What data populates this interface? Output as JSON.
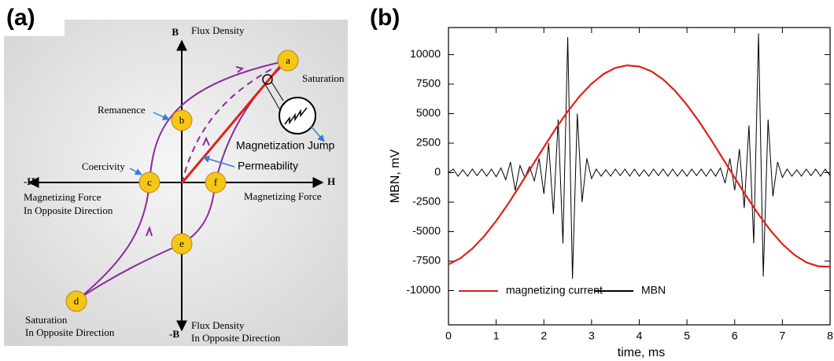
{
  "panel_a": {
    "label": "(a)",
    "b_axis": {
      "top": "B",
      "top_text": "Flux Density",
      "bottom": "-B",
      "bottom_text": [
        "Flux Density",
        "In Opposite Direction"
      ]
    },
    "h_axis": {
      "right": "H",
      "right_text": "Magnetizing Force",
      "left": "-H",
      "left_text": [
        "Magnetizing Force",
        "In Opposite Direction"
      ]
    },
    "points": [
      "a",
      "b",
      "c",
      "d",
      "e",
      "f"
    ],
    "annotations": {
      "saturation": "Saturation",
      "saturation_opposite": [
        "Saturation",
        "In Opposite Direction"
      ],
      "remanence": "Remanence",
      "coercivity": "Coercivity",
      "permeability": "Permeability",
      "magnetization_jump": "Magnetization Jump"
    }
  },
  "chart_data": {
    "type": "line",
    "panel_label": "(b)",
    "x_label": "time, ms",
    "y_label": "MBN, mV",
    "xlim": [
      0,
      8
    ],
    "xticks": [
      0,
      1,
      2,
      3,
      4,
      5,
      6,
      7,
      8
    ],
    "ylim": [
      -12900,
      12300
    ],
    "yticks": [
      -10000,
      -7500,
      -5000,
      -2500,
      0,
      2500,
      5000,
      7500,
      10000
    ],
    "series": [
      {
        "name": "MBN",
        "color": "#000000",
        "x": [
          0,
          0.1,
          0.2,
          0.3,
          0.4,
          0.5,
          0.6,
          0.7,
          0.8,
          0.9,
          1,
          1.1,
          1.2,
          1.3,
          1.4,
          1.5,
          1.6,
          1.7,
          1.8,
          1.9,
          2,
          2.1,
          2.2,
          2.3,
          2.4,
          2.5,
          2.6,
          2.7,
          2.8,
          2.9,
          3,
          3.1,
          3.2,
          3.3,
          3.4,
          3.5,
          3.6,
          3.7,
          3.8,
          3.9,
          4,
          4.1,
          4.2,
          4.3,
          4.4,
          4.5,
          4.6,
          4.7,
          4.8,
          4.9,
          5,
          5.1,
          5.2,
          5.3,
          5.4,
          5.5,
          5.6,
          5.7,
          5.8,
          5.9,
          6,
          6.1,
          6.2,
          6.3,
          6.4,
          6.5,
          6.6,
          6.7,
          6.8,
          6.9,
          7,
          7.1,
          7.2,
          7.3,
          7.4,
          7.5,
          7.6,
          7.7,
          7.8,
          7.9,
          8
        ],
        "values": [
          0,
          300,
          -300,
          250,
          -300,
          300,
          -250,
          300,
          -300,
          300,
          -350,
          400,
          -600,
          900,
          -1500,
          600,
          -400,
          500,
          -700,
          1200,
          -1800,
          2500,
          -3500,
          4500,
          -6000,
          11500,
          -9000,
          5000,
          -2500,
          1200,
          -500,
          300,
          -300,
          250,
          -300,
          300,
          -250,
          300,
          -300,
          300,
          -300,
          250,
          -300,
          300,
          -250,
          300,
          -300,
          300,
          -300,
          250,
          -300,
          300,
          -250,
          300,
          -300,
          300,
          -300,
          400,
          -900,
          1200,
          -1500,
          2000,
          -3000,
          4000,
          -6000,
          11800,
          -8800,
          4500,
          -2000,
          900,
          -400,
          300,
          -300,
          250,
          -300,
          300,
          -250,
          300,
          -300,
          300,
          -250
        ]
      },
      {
        "name": "magnetizing current",
        "color": "#e0201b",
        "x": [
          0,
          0.25,
          0.5,
          0.75,
          1,
          1.25,
          1.5,
          1.75,
          2,
          2.25,
          2.5,
          2.75,
          3,
          3.25,
          3.5,
          3.75,
          4,
          4.25,
          4.5,
          4.75,
          5,
          5.25,
          5.5,
          5.75,
          6,
          6.25,
          6.5,
          6.75,
          7,
          7.25,
          7.5,
          7.75,
          8
        ],
        "values": [
          -7780,
          -7250,
          -6440,
          -5380,
          -4090,
          -2650,
          -1070,
          550,
          2170,
          3740,
          5200,
          6470,
          7540,
          8360,
          8880,
          9090,
          8990,
          8600,
          7900,
          6940,
          5740,
          4350,
          2820,
          1200,
          -430,
          -2030,
          -3540,
          -4890,
          -6050,
          -6960,
          -7600,
          -7940,
          -7970
        ]
      }
    ],
    "legend_order": [
      1,
      0
    ]
  }
}
